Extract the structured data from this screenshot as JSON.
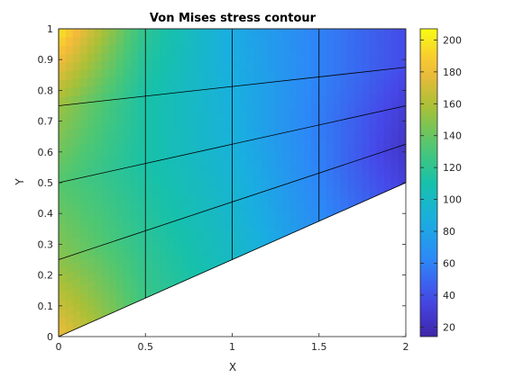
{
  "chart_data": {
    "type": "heatmap",
    "title": "Von Mises stress contour",
    "xlabel": "X",
    "ylabel": "Y",
    "xlim": [
      0,
      2
    ],
    "ylim": [
      0,
      1
    ],
    "x_ticks": [
      0,
      0.5,
      1,
      1.5,
      2
    ],
    "x_tick_labels": [
      "0",
      "0.5",
      "1",
      "1.5",
      "2"
    ],
    "y_ticks": [
      0,
      0.1,
      0.2,
      0.3,
      0.4,
      0.5,
      0.6,
      0.7,
      0.8,
      0.9,
      1
    ],
    "y_tick_labels": [
      "0",
      "0.1",
      "0.2",
      "0.3",
      "0.4",
      "0.5",
      "0.6",
      "0.7",
      "0.8",
      "0.9",
      "1"
    ],
    "domain": {
      "shape": "trapezoid",
      "vertices": [
        [
          0,
          0
        ],
        [
          2,
          0.5
        ],
        [
          2,
          1
        ],
        [
          0,
          1
        ]
      ]
    },
    "mesh": {
      "u_lines": [
        0,
        0.25,
        0.5,
        0.75,
        1
      ],
      "v_lines": [
        0,
        0.25,
        0.5,
        0.75,
        1
      ]
    },
    "stress_field": {
      "x": [
        0,
        0.5,
        1,
        1.5,
        2
      ],
      "y_fraction": [
        0,
        0.25,
        0.5,
        0.75,
        1
      ],
      "values": [
        [
          180,
          125,
          100,
          65,
          32
        ],
        [
          150,
          118,
          95,
          60,
          25
        ],
        [
          135,
          112,
          90,
          58,
          30
        ],
        [
          155,
          112,
          88,
          60,
          38
        ],
        [
          200,
          120,
          85,
          60,
          38
        ]
      ]
    },
    "colorbar": {
      "position": "right",
      "range": [
        14,
        207
      ],
      "ticks": [
        20,
        40,
        60,
        80,
        100,
        120,
        140,
        160,
        180,
        200
      ],
      "tick_labels": [
        "20",
        "40",
        "60",
        "80",
        "100",
        "120",
        "140",
        "160",
        "180",
        "200"
      ],
      "colormap": "parula"
    },
    "grid": false
  }
}
